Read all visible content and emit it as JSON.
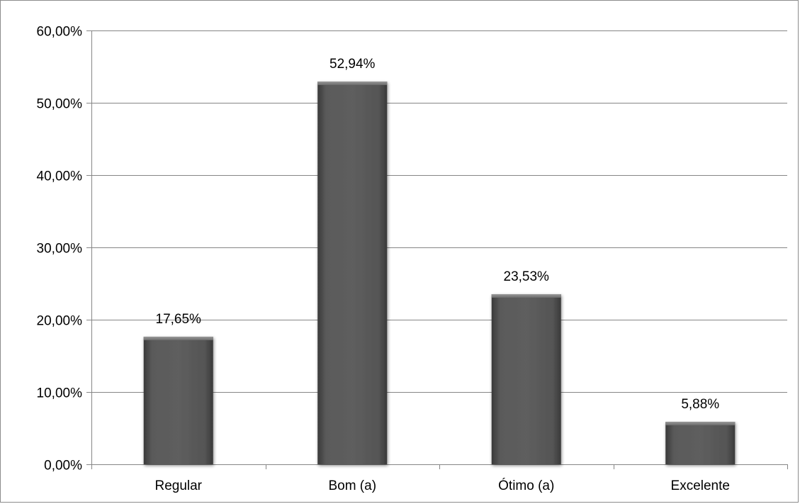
{
  "chart_data": {
    "type": "bar",
    "categories": [
      "Regular",
      "Bom (a)",
      "Ótimo (a)",
      "Excelente"
    ],
    "values": [
      17.65,
      52.94,
      23.53,
      5.88
    ],
    "value_labels": [
      "17,65%",
      "52,94%",
      "23,53%",
      "5,88%"
    ],
    "ylim": [
      0,
      60
    ],
    "yticks": [
      0,
      10,
      20,
      30,
      40,
      50,
      60
    ],
    "ytick_labels": [
      "0,00%",
      "10,00%",
      "20,00%",
      "30,00%",
      "40,00%",
      "50,00%",
      "60,00%"
    ],
    "title": "",
    "xlabel": "",
    "ylabel": "",
    "grid": true,
    "legend": false,
    "colors": {
      "bar": "#555555",
      "bar_highlight": "#8a8a8a",
      "grid": "#868686",
      "axis": "#868686"
    }
  }
}
